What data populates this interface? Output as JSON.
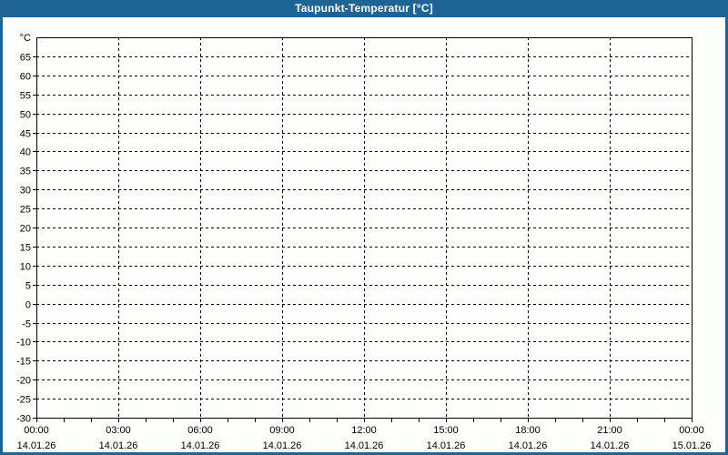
{
  "window": {
    "title": "Taupunkt-Temperatur [°C]"
  },
  "colors": {
    "header_bg": "#1e6494",
    "border": "#1e6494",
    "title_text": "#ffffff",
    "page_bg": "#fdfffd",
    "plot_bg": "#fdfffd",
    "grid": "#000000",
    "frame": "#000000",
    "axis_text": "#000000"
  },
  "chart_data": {
    "type": "line",
    "title": "Taupunkt-Temperatur [°C]",
    "series": [],
    "grid": true,
    "legend": false,
    "y_axis": {
      "unit_label": "°C",
      "ylim": [
        -30,
        70
      ],
      "tick_step": 5,
      "tick_labels": [
        65,
        60,
        55,
        50,
        45,
        40,
        35,
        30,
        25,
        20,
        15,
        10,
        5,
        0,
        -5,
        -10,
        -15,
        -20,
        -25,
        -30
      ]
    },
    "x_axis": {
      "total_hours": 24,
      "major_step_hours": 3,
      "minor_step_hours": 1,
      "major_ticks": [
        {
          "time": "00:00",
          "date": "14.01.26"
        },
        {
          "time": "03:00",
          "date": "14.01.26"
        },
        {
          "time": "06:00",
          "date": "14.01.26"
        },
        {
          "time": "09:00",
          "date": "14.01.26"
        },
        {
          "time": "12:00",
          "date": "14.01.26"
        },
        {
          "time": "15:00",
          "date": "14.01.26"
        },
        {
          "time": "18:00",
          "date": "14.01.26"
        },
        {
          "time": "21:00",
          "date": "14.01.26"
        },
        {
          "time": "00:00",
          "date": "15.01.26"
        }
      ]
    }
  }
}
